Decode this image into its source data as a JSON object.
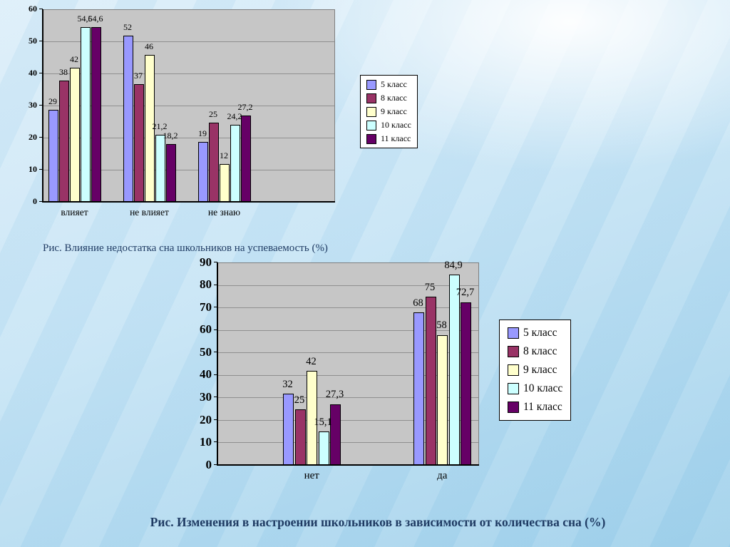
{
  "slide": {
    "caption1": "Рис. Влияние недостатка сна школьников на успеваемость  (%)",
    "caption2": "Рис. Изменения в настроении школьников в зависимости от количества сна (%)"
  },
  "chart_data": [
    {
      "type": "bar",
      "title": "Влияние недостатка сна школьников на успеваемость (%)",
      "categories": [
        "влияет",
        "не влияет",
        "не знаю"
      ],
      "series": [
        {
          "name": "5 класс",
          "color": "#9999ff",
          "values": [
            29,
            52,
            19
          ],
          "labels": [
            "29",
            "52",
            "19"
          ]
        },
        {
          "name": "8 класс",
          "color": "#993366",
          "values": [
            38,
            37,
            25
          ],
          "labels": [
            "38",
            "37",
            "25"
          ]
        },
        {
          "name": "9 класс",
          "color": "#ffffcc",
          "values": [
            42,
            46,
            12
          ],
          "labels": [
            "42",
            "46",
            "12"
          ]
        },
        {
          "name": "10 класс",
          "color": "#ccffff",
          "values": [
            54.6,
            21.2,
            24.2
          ],
          "labels": [
            "54,6",
            "21,2",
            "24,2"
          ]
        },
        {
          "name": "11 класс",
          "color": "#660066",
          "values": [
            54.6,
            18.2,
            27.2
          ],
          "labels": [
            "54,6",
            "18,2",
            "27,2"
          ]
        }
      ],
      "ylim": [
        0,
        60
      ],
      "ytick_step": 10,
      "grid": true,
      "legend_position": "right"
    },
    {
      "type": "bar",
      "title": "Изменения в настроении школьников в зависимости от количества сна (%)",
      "categories": [
        "нет",
        "да"
      ],
      "series": [
        {
          "name": "5 класс",
          "color": "#9999ff",
          "values": [
            32,
            68
          ],
          "labels": [
            "32",
            "68"
          ]
        },
        {
          "name": "8 класс",
          "color": "#993366",
          "values": [
            25,
            75
          ],
          "labels": [
            "25",
            "75"
          ]
        },
        {
          "name": "9 класс",
          "color": "#ffffcc",
          "values": [
            42,
            58
          ],
          "labels": [
            "42",
            "58"
          ]
        },
        {
          "name": "10 класс",
          "color": "#ccffff",
          "values": [
            15.1,
            84.9
          ],
          "labels": [
            "15,1",
            "84,9"
          ]
        },
        {
          "name": "11 класс",
          "color": "#660066",
          "values": [
            27.3,
            72.7
          ],
          "labels": [
            "27,3",
            "72,7"
          ]
        }
      ],
      "ylim": [
        0,
        90
      ],
      "ytick_step": 10,
      "grid": true,
      "legend_position": "right"
    }
  ]
}
